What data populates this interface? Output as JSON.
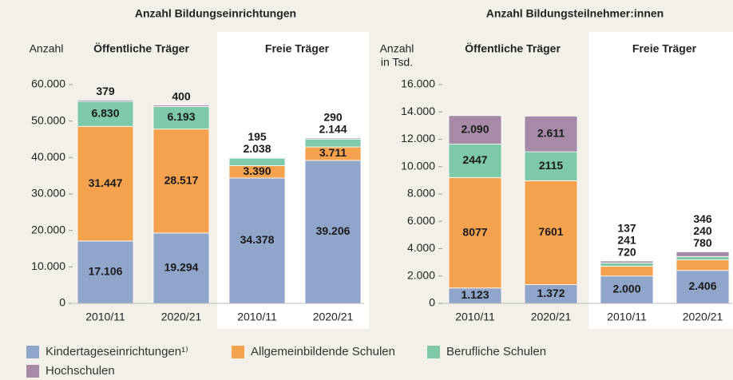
{
  "chart_data": [
    {
      "type": "bar",
      "stacked": true,
      "title": "Anzahl Bildungseinrichtungen",
      "ylabel": [
        "Anzahl"
      ],
      "group_labels": [
        "Öffentliche Träger",
        "Freie Träger"
      ],
      "categories": [
        "2010/11",
        "2020/21",
        "2010/11",
        "2020/21"
      ],
      "ylim": [
        0,
        60000
      ],
      "yticks": [
        0,
        {
          "value": 10000,
          "label": "10.000"
        },
        {
          "value": 20000,
          "label": "20.000"
        },
        {
          "value": 30000,
          "label": "30.000"
        },
        {
          "value": 40000,
          "label": "40.000"
        },
        {
          "value": 50000,
          "label": "50.000"
        },
        {
          "value": 60000,
          "label": "60.000"
        }
      ],
      "series": [
        {
          "name": "Kindertageseinrichtungen¹⁾",
          "color": "#8fa5c9",
          "values": [
            17106,
            19294,
            34378,
            39206
          ],
          "value_labels": [
            "17.106",
            "19.294",
            "34.378",
            "39.206"
          ]
        },
        {
          "name": "Allgemeinbildende Schulen",
          "color": "#f5a24f",
          "values": [
            31447,
            28517,
            3390,
            3711
          ],
          "value_labels": [
            "31.447",
            "28.517",
            "3.390",
            "3.711"
          ]
        },
        {
          "name": "Berufliche Schulen",
          "color": "#7ec9aa",
          "values": [
            6830,
            6193,
            2038,
            2144
          ],
          "value_labels": [
            "6.830",
            "6.193",
            "2.038",
            "2.144"
          ]
        },
        {
          "name": "Hochschulen",
          "color": "#a68aa7",
          "values": [
            379,
            400,
            195,
            290
          ]
        }
      ]
    },
    {
      "type": "bar",
      "stacked": true,
      "title": "Anzahl Bildungsteilnehmer:innen",
      "ylabel": [
        "Anzahl",
        "in Tsd."
      ],
      "group_labels": [
        "Öffentliche Träger",
        "Freie Träger"
      ],
      "categories": [
        "2010/11",
        "2020/21",
        "2010/11",
        "2020/21"
      ],
      "ylim": [
        0,
        16000
      ],
      "yticks": [
        0,
        {
          "value": 2000,
          "label": "2.000"
        },
        {
          "value": 4000,
          "label": "4.000"
        },
        {
          "value": 6000,
          "label": "6.000"
        },
        {
          "value": 8000,
          "label": "8.000"
        },
        {
          "value": 10000,
          "label": "10.000"
        },
        {
          "value": 12000,
          "label": "12.000"
        },
        {
          "value": 14000,
          "label": "14.000"
        },
        {
          "value": 16000,
          "label": "16.000"
        }
      ],
      "series": [
        {
          "color": "#8fa5c9",
          "values": [
            1123,
            1372,
            2000,
            2406
          ],
          "value_labels": [
            "1.123",
            "1.372",
            "2.000",
            "2.406"
          ]
        },
        {
          "color": "#f5a24f",
          "values": [
            8077,
            7601,
            720,
            780
          ]
        },
        {
          "color": "#7ec9aa",
          "values": [
            2447,
            2115,
            241,
            240
          ]
        },
        {
          "color": "#a68aa7",
          "values": [
            2090,
            2611,
            137,
            346
          ],
          "value_labels": [
            "2.090",
            "2.611",
            "137",
            "346"
          ]
        }
      ]
    }
  ]
}
